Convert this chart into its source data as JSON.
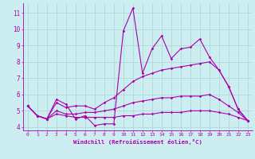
{
  "background_color": "#cceef0",
  "grid_color": "#aad4d8",
  "line_color": "#aa00aa",
  "xlabel": "Windchill (Refroidissement éolien,°C)",
  "xlim": [
    -0.5,
    23.5
  ],
  "ylim": [
    3.8,
    11.6
  ],
  "yticks": [
    4,
    5,
    6,
    7,
    8,
    9,
    10,
    11
  ],
  "xticks": [
    0,
    1,
    2,
    3,
    4,
    5,
    6,
    7,
    8,
    9,
    10,
    11,
    12,
    13,
    14,
    15,
    16,
    17,
    18,
    19,
    20,
    21,
    22,
    23
  ],
  "series": [
    [
      5.3,
      4.7,
      4.5,
      5.7,
      5.4,
      4.5,
      4.7,
      4.1,
      4.2,
      4.2,
      9.9,
      11.3,
      7.3,
      8.8,
      9.6,
      8.2,
      8.8,
      8.9,
      9.4,
      8.3,
      7.5,
      6.5,
      5.1,
      4.4
    ],
    [
      5.3,
      4.7,
      4.5,
      5.5,
      5.2,
      5.3,
      5.3,
      5.1,
      5.5,
      5.8,
      6.3,
      6.8,
      7.1,
      7.3,
      7.5,
      7.6,
      7.7,
      7.8,
      7.9,
      8.0,
      7.5,
      6.5,
      5.1,
      4.4
    ],
    [
      5.3,
      4.7,
      4.5,
      5.0,
      4.8,
      4.8,
      4.9,
      4.9,
      5.0,
      5.1,
      5.3,
      5.5,
      5.6,
      5.7,
      5.8,
      5.8,
      5.9,
      5.9,
      5.9,
      6.0,
      5.7,
      5.3,
      4.9,
      4.4
    ],
    [
      5.3,
      4.7,
      4.5,
      4.8,
      4.7,
      4.6,
      4.6,
      4.6,
      4.6,
      4.6,
      4.7,
      4.7,
      4.8,
      4.8,
      4.9,
      4.9,
      4.9,
      5.0,
      5.0,
      5.0,
      4.9,
      4.8,
      4.6,
      4.4
    ]
  ]
}
